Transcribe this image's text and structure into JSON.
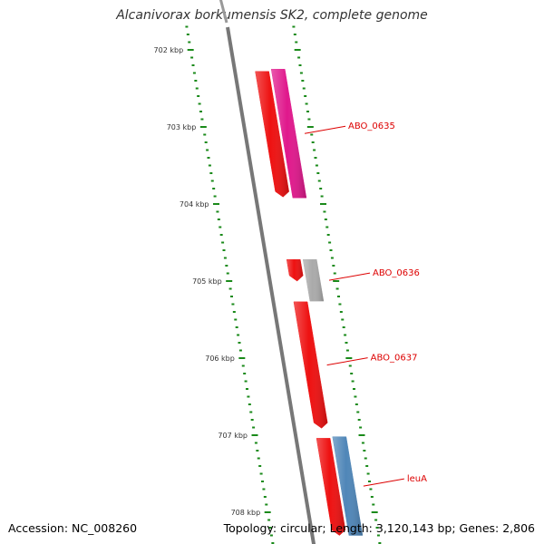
{
  "title": "Alcanivorax borkumensis SK2, complete genome",
  "footer": {
    "accession": "Accession: NC_008260",
    "summary": "Topology: circular; Length: 3,120,143 bp; Genes: 2,806"
  },
  "ruler": {
    "tick_color": "#1a8a1a",
    "backbone_color": "#777777",
    "labels": [
      "702 kbp",
      "703 kbp",
      "704 kbp",
      "705 kbp",
      "706 kbp",
      "707 kbp",
      "708 kbp"
    ]
  },
  "features": [
    {
      "id": "cds-1",
      "strand": "forward",
      "start_kbp": 702.28,
      "end_kbp": 703.91,
      "color": "#ee1111"
    },
    {
      "id": "gene-1",
      "strand": "reverse",
      "start_kbp": 702.25,
      "end_kbp": 703.92,
      "color": "#e0188c",
      "label": "ABO_0635"
    },
    {
      "id": "cds-2",
      "strand": "forward",
      "start_kbp": 704.72,
      "end_kbp": 705.0,
      "color": "#ee1111"
    },
    {
      "id": "gene-2",
      "strand": "reverse",
      "start_kbp": 704.72,
      "end_kbp": 705.26,
      "color": "#aaaaaa",
      "label": "ABO_0636"
    },
    {
      "id": "cds-3",
      "strand": "forward",
      "start_kbp": 705.27,
      "end_kbp": 706.91,
      "color": "#ee1111",
      "label": "ABO_0637"
    },
    {
      "id": "cds-4",
      "strand": "forward",
      "start_kbp": 707.04,
      "end_kbp": 708.3,
      "color": "#ee1111"
    },
    {
      "id": "gene-4",
      "strand": "reverse",
      "start_kbp": 707.02,
      "end_kbp": 708.3,
      "color": "#4f86b8",
      "label": "leuA"
    }
  ]
}
